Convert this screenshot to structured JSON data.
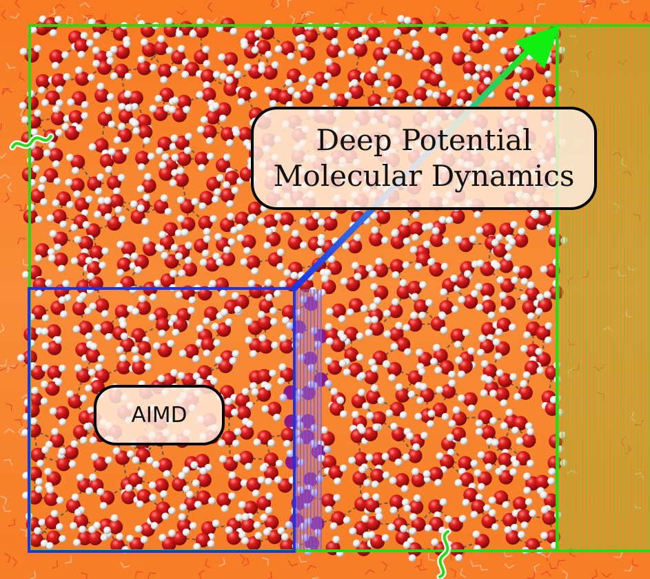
{
  "labels": {
    "dpmd_line1": "Deep Potential",
    "dpmd_line2": "Molecular Dynamics",
    "aimd": "AIMD"
  },
  "colors": {
    "background": "#f7862d",
    "large_box": "#22dd11",
    "small_box": "#1a35e6",
    "arrow_start": "#1a35e6",
    "arrow_end": "#11ee11",
    "oxygen": "#d41818",
    "hydrogen": "#f2f2f2",
    "hbond": "#555555"
  },
  "icons": {
    "break_mark": "wavy-break-icon"
  }
}
